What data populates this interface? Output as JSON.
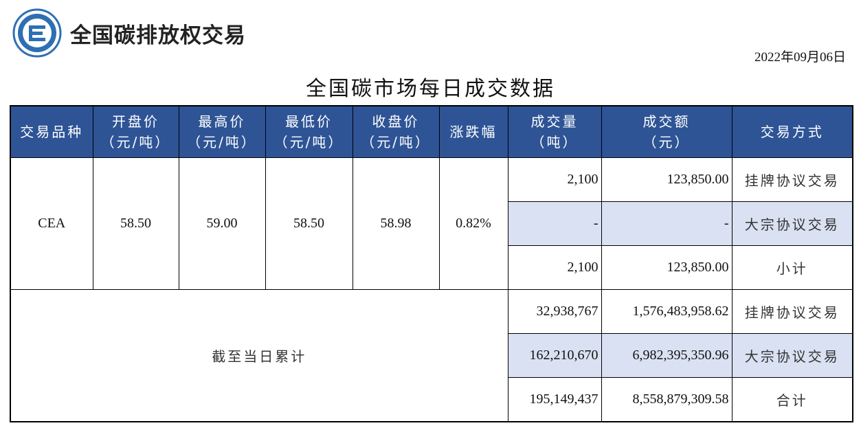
{
  "brand": {
    "name": "全国碳排放权交易"
  },
  "date": "2022年09月06日",
  "title": "全国碳市场每日成交数据",
  "headers": {
    "product": "交易品种",
    "open": {
      "l1": "开盘价",
      "l2": "（元/吨）"
    },
    "high": {
      "l1": "最高价",
      "l2": "（元/吨）"
    },
    "low": {
      "l1": "最低价",
      "l2": "（元/吨）"
    },
    "close": {
      "l1": "收盘价",
      "l2": "（元/吨）"
    },
    "change": "涨跌幅",
    "volume": {
      "l1": "成交量",
      "l2": "（吨）"
    },
    "amount": {
      "l1": "成交额",
      "l2": "（元）"
    },
    "method": "交易方式"
  },
  "daily": {
    "product": "CEA",
    "open": "58.50",
    "high": "59.00",
    "low": "58.50",
    "close": "58.98",
    "change": "0.82%",
    "rows": [
      {
        "volume": "2,100",
        "amount": "123,850.00",
        "method": "挂牌协议交易"
      },
      {
        "volume": "-",
        "amount": "-",
        "method": "大宗协议交易"
      },
      {
        "volume": "2,100",
        "amount": "123,850.00",
        "method": "小计"
      }
    ]
  },
  "cumulative": {
    "label": "截至当日累计",
    "rows": [
      {
        "volume": "32,938,767",
        "amount": "1,576,483,958.62",
        "method": "挂牌协议交易"
      },
      {
        "volume": "162,210,670",
        "amount": "6,982,395,350.96",
        "method": "大宗协议交易"
      },
      {
        "volume": "195,149,437",
        "amount": "8,558,879,309.58",
        "method": "合计"
      }
    ]
  },
  "colors": {
    "header_bg": "#2e5496",
    "shade": "#d9e1f2",
    "logo_blue": "#2e6fb4"
  },
  "icons": {
    "logo": "cets-exchange-logo-icon"
  }
}
